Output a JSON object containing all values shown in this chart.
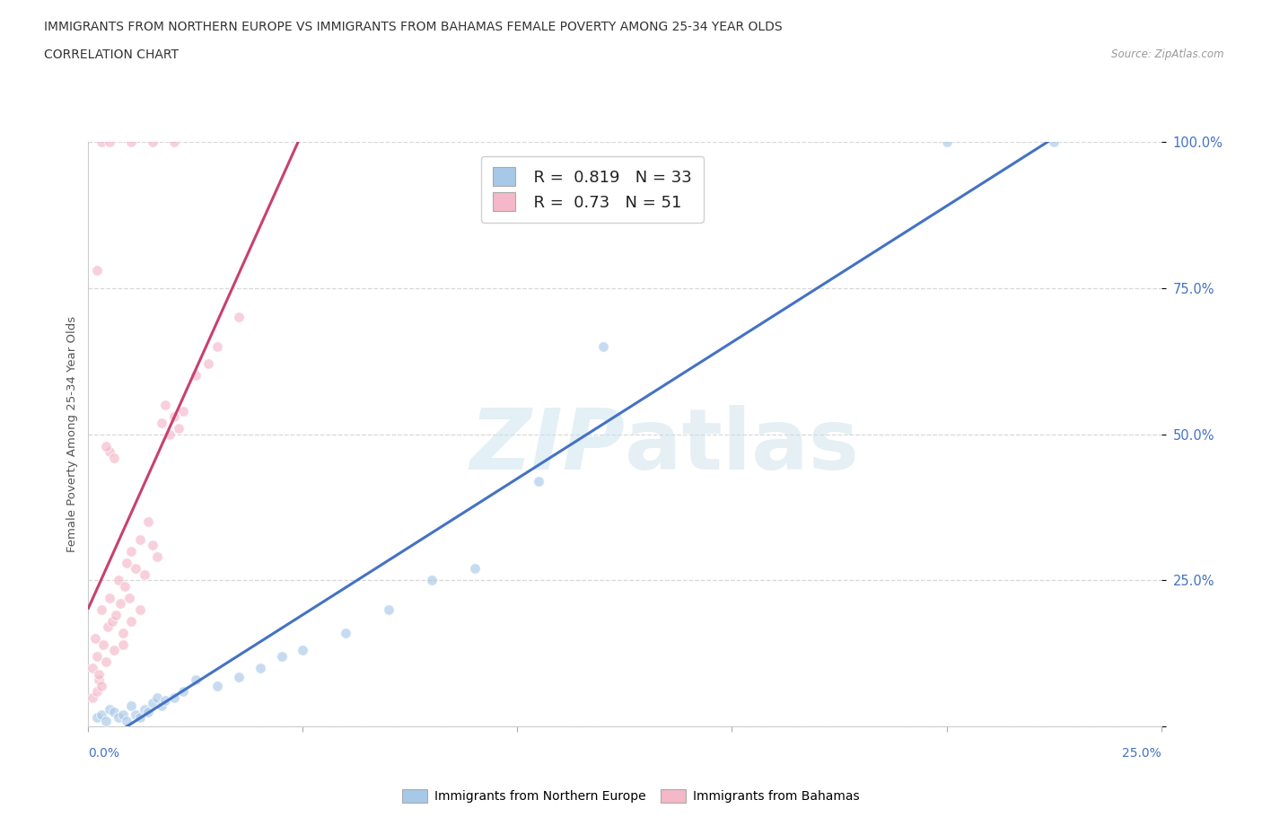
{
  "title_line1": "IMMIGRANTS FROM NORTHERN EUROPE VS IMMIGRANTS FROM BAHAMAS FEMALE POVERTY AMONG 25-34 YEAR OLDS",
  "title_line2": "CORRELATION CHART",
  "source": "Source: ZipAtlas.com",
  "ylabel": "Female Poverty Among 25-34 Year Olds",
  "watermark": "ZIPatlas",
  "blue_R": 0.819,
  "blue_N": 33,
  "pink_R": 0.73,
  "pink_N": 51,
  "blue_label": "Immigrants from Northern Europe",
  "pink_label": "Immigrants from Bahamas",
  "blue_color": "#a8c8e8",
  "pink_color": "#f4b8c8",
  "blue_line_color": "#4472c4",
  "pink_line_color": "#c94070",
  "blue_scatter": [
    [
      0.2,
      1.5
    ],
    [
      0.3,
      2.0
    ],
    [
      0.4,
      1.0
    ],
    [
      0.5,
      3.0
    ],
    [
      0.6,
      2.5
    ],
    [
      0.7,
      1.5
    ],
    [
      0.8,
      2.0
    ],
    [
      0.9,
      1.0
    ],
    [
      1.0,
      3.5
    ],
    [
      1.1,
      2.0
    ],
    [
      1.2,
      1.5
    ],
    [
      1.3,
      3.0
    ],
    [
      1.4,
      2.5
    ],
    [
      1.5,
      4.0
    ],
    [
      1.6,
      5.0
    ],
    [
      1.7,
      3.5
    ],
    [
      1.8,
      4.5
    ],
    [
      2.0,
      5.0
    ],
    [
      2.2,
      6.0
    ],
    [
      2.5,
      8.0
    ],
    [
      3.0,
      7.0
    ],
    [
      3.5,
      8.5
    ],
    [
      4.0,
      10.0
    ],
    [
      4.5,
      12.0
    ],
    [
      5.0,
      13.0
    ],
    [
      6.0,
      16.0
    ],
    [
      7.0,
      20.0
    ],
    [
      8.0,
      25.0
    ],
    [
      9.0,
      27.0
    ],
    [
      10.5,
      42.0
    ],
    [
      12.0,
      65.0
    ],
    [
      20.0,
      100.0
    ],
    [
      22.5,
      100.0
    ]
  ],
  "pink_scatter": [
    [
      0.1,
      10.0
    ],
    [
      0.15,
      15.0
    ],
    [
      0.2,
      12.0
    ],
    [
      0.25,
      8.0
    ],
    [
      0.3,
      20.0
    ],
    [
      0.35,
      14.0
    ],
    [
      0.4,
      11.0
    ],
    [
      0.45,
      17.0
    ],
    [
      0.5,
      22.0
    ],
    [
      0.55,
      18.0
    ],
    [
      0.6,
      13.0
    ],
    [
      0.65,
      19.0
    ],
    [
      0.7,
      25.0
    ],
    [
      0.75,
      21.0
    ],
    [
      0.8,
      16.0
    ],
    [
      0.85,
      24.0
    ],
    [
      0.9,
      28.0
    ],
    [
      0.95,
      22.0
    ],
    [
      1.0,
      30.0
    ],
    [
      1.1,
      27.0
    ],
    [
      1.2,
      32.0
    ],
    [
      1.3,
      26.0
    ],
    [
      1.4,
      35.0
    ],
    [
      1.5,
      31.0
    ],
    [
      1.6,
      29.0
    ],
    [
      1.7,
      52.0
    ],
    [
      1.8,
      55.0
    ],
    [
      1.9,
      50.0
    ],
    [
      2.0,
      53.0
    ],
    [
      2.1,
      51.0
    ],
    [
      2.2,
      54.0
    ],
    [
      0.5,
      47.0
    ],
    [
      0.4,
      48.0
    ],
    [
      0.6,
      46.0
    ],
    [
      0.2,
      78.0
    ],
    [
      1.0,
      100.0
    ],
    [
      1.5,
      100.0
    ],
    [
      2.0,
      100.0
    ],
    [
      0.3,
      100.0
    ],
    [
      0.5,
      100.0
    ],
    [
      0.1,
      5.0
    ],
    [
      0.2,
      6.0
    ],
    [
      0.3,
      7.0
    ],
    [
      0.25,
      9.0
    ],
    [
      1.2,
      20.0
    ],
    [
      1.0,
      18.0
    ],
    [
      0.8,
      14.0
    ],
    [
      2.5,
      60.0
    ],
    [
      3.0,
      65.0
    ],
    [
      2.8,
      62.0
    ],
    [
      3.5,
      70.0
    ]
  ],
  "xmin": 0.0,
  "xmax": 25.0,
  "ymin": 0.0,
  "ymax": 100.0,
  "ytick_positions": [
    0,
    25,
    50,
    75,
    100
  ],
  "ytick_labels": [
    "",
    "25.0%",
    "50.0%",
    "75.0%",
    "100.0%"
  ],
  "xtick_positions": [
    0,
    5,
    10,
    15,
    20,
    25
  ],
  "grid_color": "#d8d8d8",
  "background_color": "#ffffff",
  "marker_size": 70,
  "marker_alpha": 0.65
}
